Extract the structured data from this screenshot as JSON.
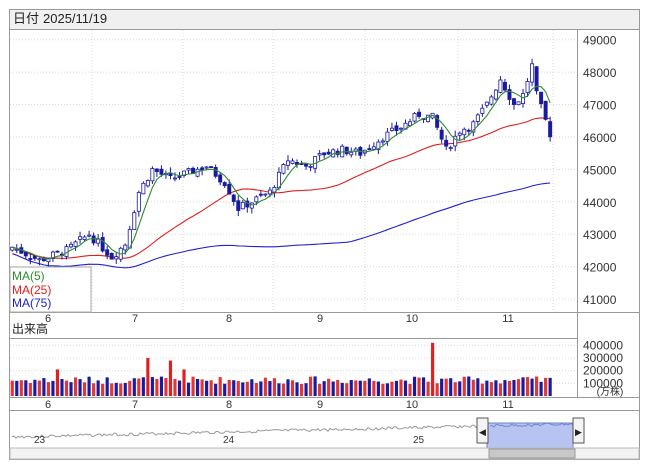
{
  "header": {
    "date_label": "日付",
    "date_value": "2025/11/19"
  },
  "legend": {
    "ma5": "MA(5)",
    "ma25": "MA(25)",
    "ma75": "MA(75)"
  },
  "volume_panel": {
    "title": "出来高",
    "unit": "(万株)"
  },
  "navigator": {
    "year_labels": [
      "23",
      "24",
      "25"
    ],
    "left_handle": "◀",
    "right_handle": "▶"
  },
  "colors": {
    "up": "#1a1aa0",
    "down": "#1a1aa0",
    "hollow": "#ffffff",
    "ma5": "#2e8b2e",
    "ma25": "#e02020",
    "ma75": "#2020d0",
    "volume": "#1a1aa0",
    "volume_high": "#e02020",
    "grid": "#d8d8d8",
    "navigator_fill": "#aab8ee"
  },
  "chart_data": [
    {
      "type": "candlestick",
      "title": "",
      "x_tick_labels": [
        "6",
        "7",
        "8",
        "9",
        "10",
        "11"
      ],
      "y_tick_labels": [
        "41000",
        "42000",
        "43000",
        "44000",
        "45000",
        "46000",
        "47000",
        "48000",
        "49000"
      ],
      "ylim": [
        40600,
        49300
      ],
      "grid": true,
      "legend_position": "bottom-left",
      "series": [
        {
          "name": "MA(5)",
          "color": "#2e8b2e"
        },
        {
          "name": "MA(25)",
          "color": "#e02020"
        },
        {
          "name": "MA(75)",
          "color": "#2020d0"
        }
      ]
    },
    {
      "type": "bar",
      "title": "出来高",
      "y_tick_labels": [
        "100000",
        "200000",
        "300000",
        "400000"
      ],
      "ylim": [
        0,
        450000
      ],
      "unit": "(万株)"
    }
  ]
}
